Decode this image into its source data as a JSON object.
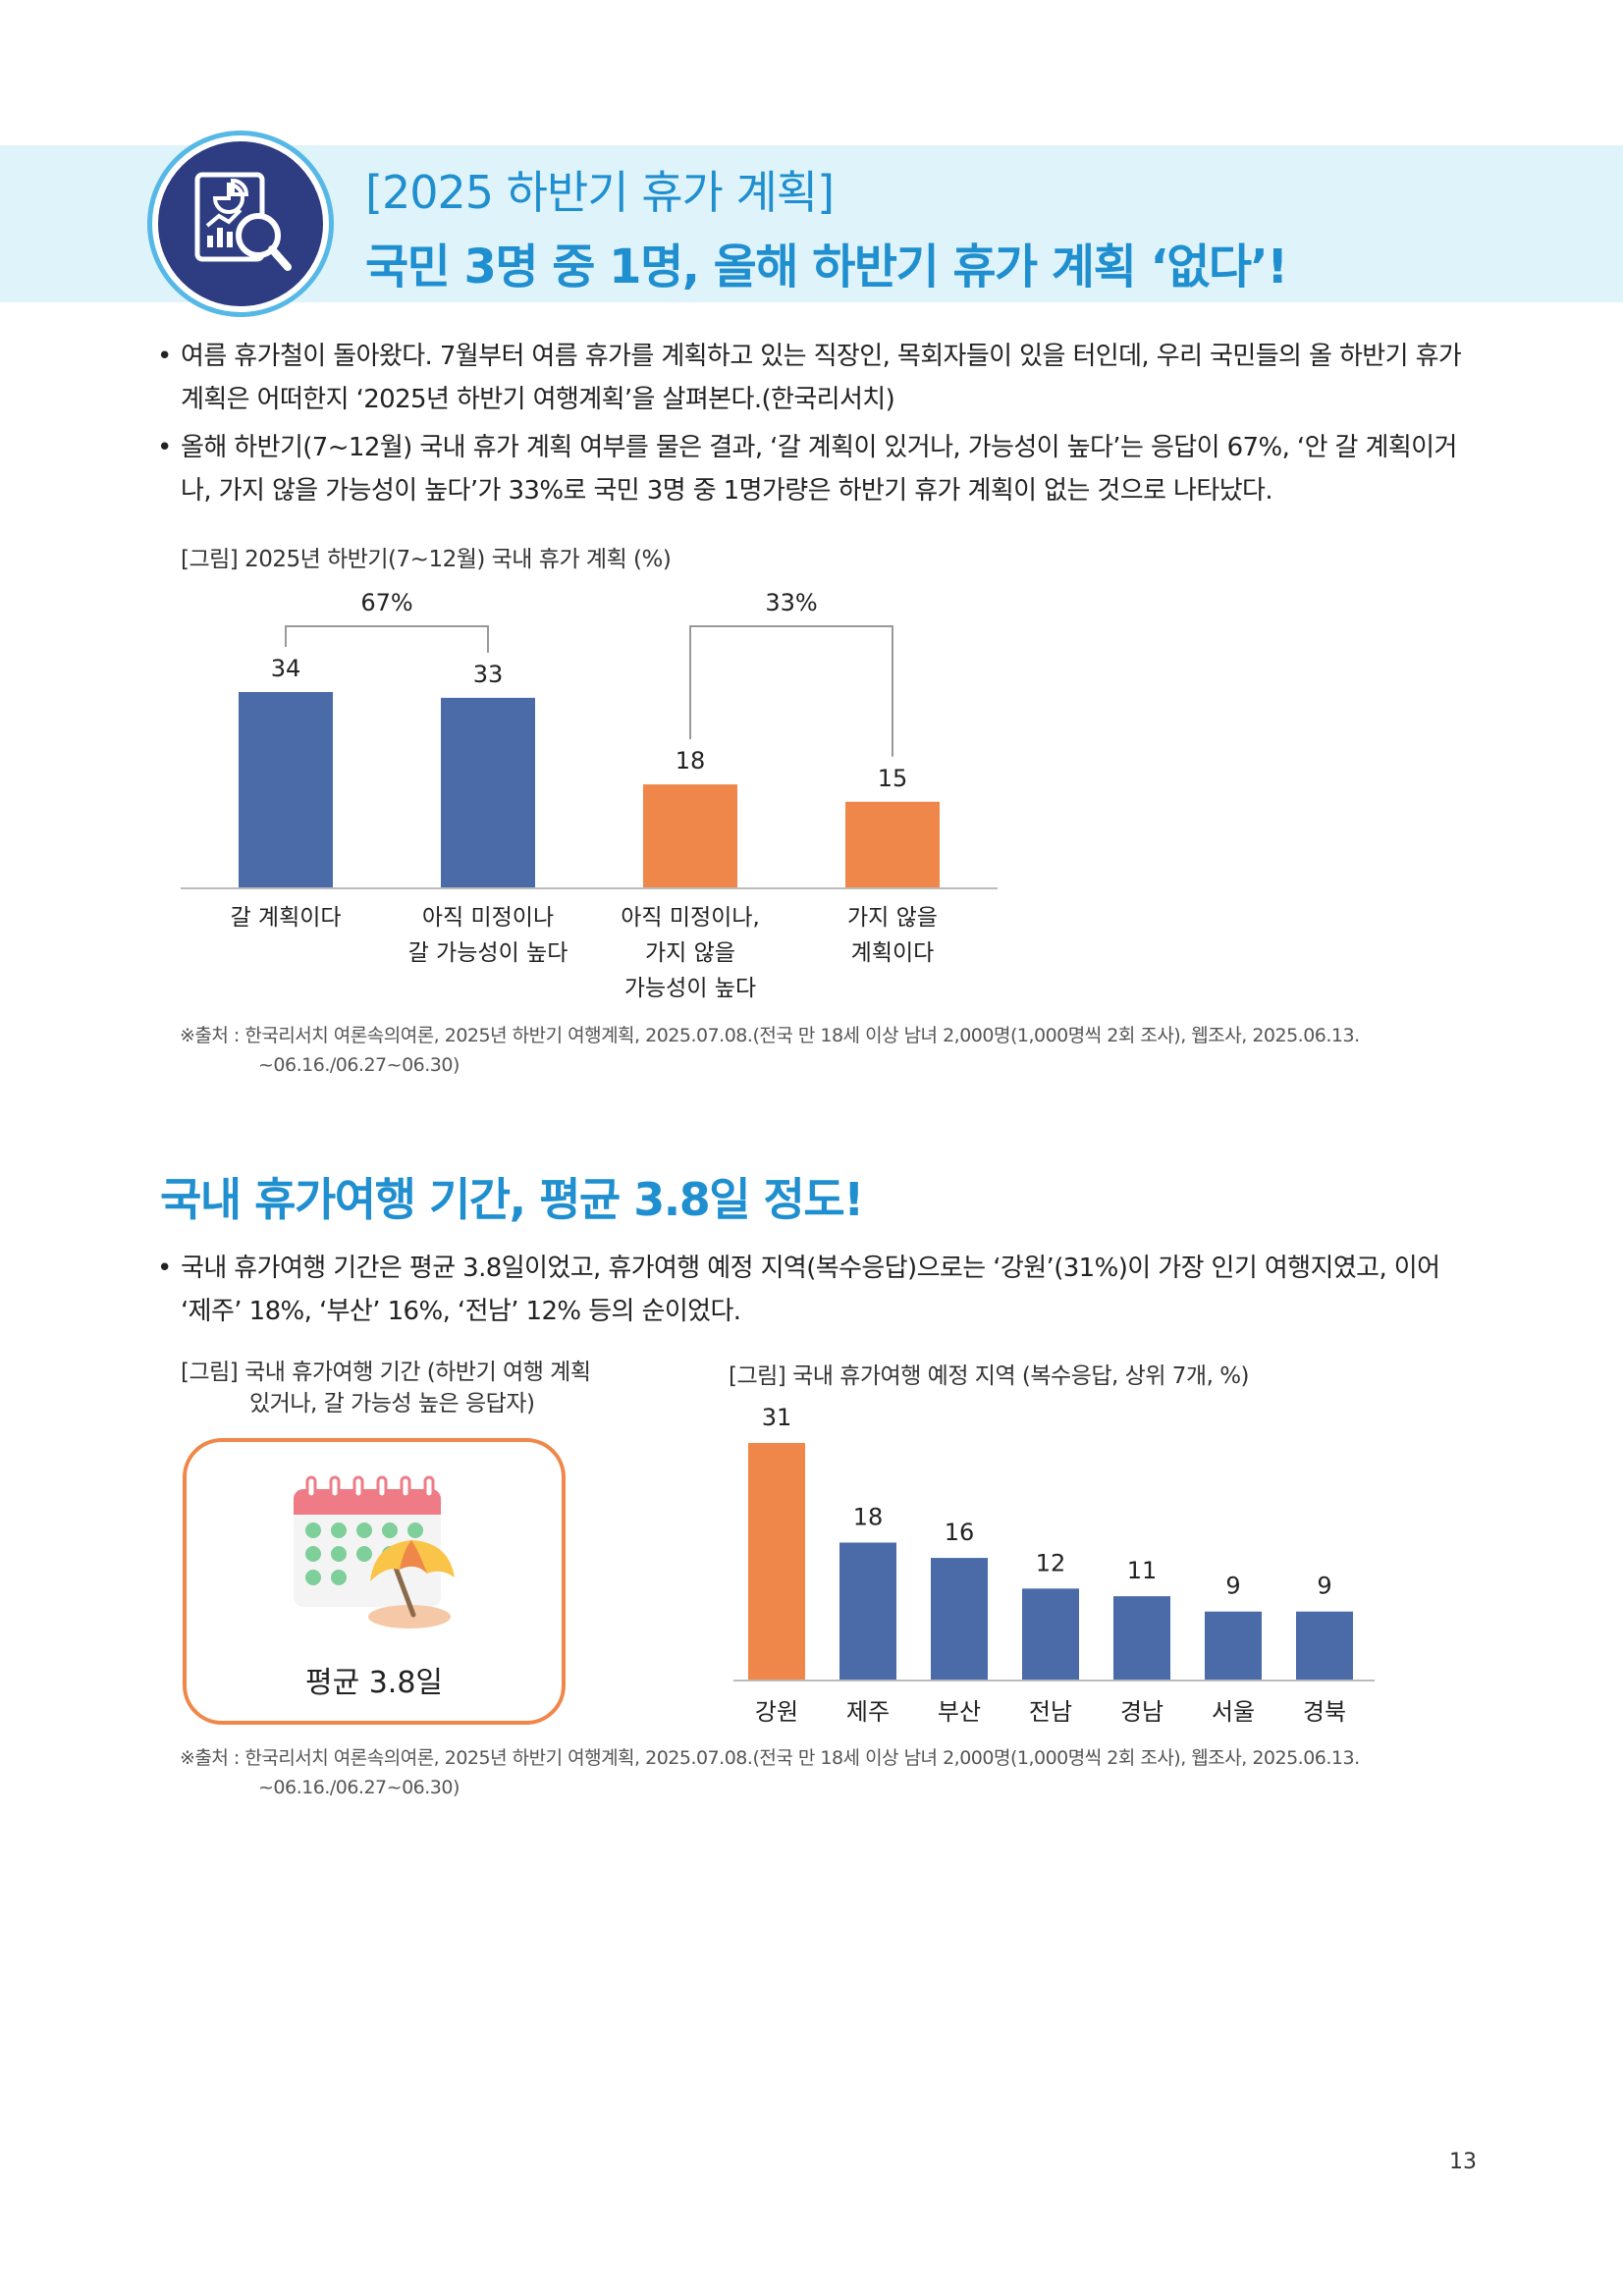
{
  "header": {
    "icon": "report-magnifier-icon",
    "title_line1": "[2025 하반기 휴가 계획]",
    "title_line2": "국민 3명 중 1명, 올해 하반기 휴가 계획 ‘없다’!"
  },
  "intro": {
    "bullets": [
      "여름 휴가철이 돌아왔다. 7월부터 여름 휴가를 계획하고 있는 직장인, 목회자들이 있을 터인데, 우리 국민들의 올 하반기 휴가 계획은 어떠한지 ‘2025년 하반기 여행계획’을 살펴본다.(한국리서치)",
      "올해 하반기(7~12월) 국내 휴가 계획 여부를 물은 결과, ‘갈 계획이 있거나, 가능성이 높다’는 응답이 67%, ‘안 갈 계획이거나, 가지 않을 가능성이 높다’가 33%로 국민 3명 중 1명가량은 하반기 휴가 계획이 없는 것으로 나타났다."
    ]
  },
  "figure1": {
    "caption": "[그림] 2025년 하반기(7~12월) 국내 휴가 계획 (%)",
    "source_line1": "※출처 : 한국리서치 여론속의여론, 2025년 하반기 여행계획, 2025.07.08.(전국 만 18세 이상 남녀 2,000명(1,000명씩 2회 조사), 웹조사, 2025.06.13.",
    "source_line2": "~06.16./06.27~06.30)"
  },
  "section2": {
    "title": "국내 휴가여행 기간, 평균 3.8일 정도!",
    "bullet": "국내 휴가여행 기간은 평균 3.8일이었고, 휴가여행 예정 지역(복수응답)으로는 ‘강원’(31%)이 가장 인기 여행지였고, 이어 ‘제주’ 18%, ‘부산’ 16%, ‘전남’ 12% 등의 순이었다."
  },
  "figure2": {
    "caption_line1": "[그림] 국내 휴가여행 기간 (하반기 여행 계획",
    "caption_line2": "있거나, 갈 가능성 높은 응답자)",
    "card_icon": "calendar-beach-umbrella-icon",
    "card_label": "평균 3.8일"
  },
  "figure3": {
    "caption": "[그림] 국내 휴가여행 예정 지역 (복수응답, 상위 7개, %)",
    "source_line1": "※출처 : 한국리서치 여론속의여론, 2025년 하반기 여행계획, 2025.07.08.(전국 만 18세 이상 남녀 2,000명(1,000명씩 2회 조사), 웹조사, 2025.06.13.",
    "source_line2": "~06.16./06.27~06.30)"
  },
  "page_number": "13",
  "chart_data": [
    {
      "type": "bar",
      "categories": [
        [
          "갈 계획이다"
        ],
        [
          "아직 미정이나",
          "갈 가능성이 높다"
        ],
        [
          "아직 미정이나,",
          "가지 않을",
          "가능성이 높다"
        ],
        [
          "가지 않을",
          "계획이다"
        ]
      ],
      "values": [
        34,
        33,
        18,
        15
      ],
      "value_labels": [
        "34",
        "33",
        "18",
        "15"
      ],
      "bar_colors": [
        "#4a6ba8",
        "#4a6ba8",
        "#f0874a",
        "#f0874a"
      ],
      "groups": [
        {
          "label": "67%",
          "from": 0,
          "to": 1
        },
        {
          "label": "33%",
          "from": 2,
          "to": 3
        }
      ],
      "ylim": [
        0,
        40
      ],
      "grid": false,
      "legend": "none"
    },
    {
      "type": "bar",
      "categories": [
        "강원",
        "제주",
        "부산",
        "전남",
        "경남",
        "서울",
        "경북"
      ],
      "values": [
        31,
        18,
        16,
        12,
        11,
        9,
        9
      ],
      "value_labels": [
        "31",
        "18",
        "16",
        "12",
        "11",
        "9",
        "9"
      ],
      "bar_colors": [
        "#f0874a",
        "#4a6ba8",
        "#4a6ba8",
        "#4a6ba8",
        "#4a6ba8",
        "#4a6ba8",
        "#4a6ba8"
      ],
      "ylim": [
        0,
        35
      ],
      "grid": false,
      "legend": "none"
    }
  ]
}
